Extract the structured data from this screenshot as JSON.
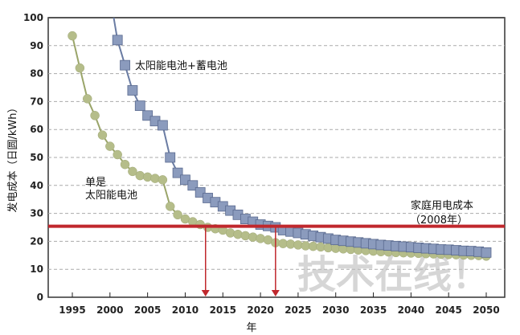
{
  "chart_data": {
    "type": "line",
    "title": "",
    "xlabel": "年",
    "ylabel": "发电成本（日圆/kWh）",
    "xlim": [
      1990,
      2052
    ],
    "ylim": [
      0,
      100
    ],
    "xticks": [
      1995,
      2000,
      2005,
      2010,
      2015,
      2020,
      2025,
      2030,
      2035,
      2040,
      2045,
      2050
    ],
    "yticks": [
      0,
      10,
      20,
      30,
      40,
      50,
      60,
      70,
      80,
      90,
      100
    ],
    "grid": "horizontal dashed",
    "series": [
      {
        "name": "单是太阳能电池",
        "label_line1": "单是",
        "label_line2": "太阳能电池",
        "marker": "circle",
        "color": "#b5bd8a",
        "line_color": "#9aa56a",
        "x": [
          1995,
          1996,
          1997,
          1998,
          1999,
          2000,
          2001,
          2002,
          2003,
          2004,
          2005,
          2006,
          2007,
          2008,
          2009,
          2010,
          2011,
          2012,
          2013,
          2014,
          2015,
          2016,
          2017,
          2018,
          2019,
          2020,
          2021,
          2022,
          2023,
          2024,
          2025,
          2026,
          2027,
          2028,
          2029,
          2030,
          2031,
          2032,
          2033,
          2034,
          2035,
          2036,
          2037,
          2038,
          2039,
          2040,
          2041,
          2042,
          2043,
          2044,
          2045,
          2046,
          2047,
          2048,
          2049,
          2050
        ],
        "y": [
          93.5,
          82,
          71,
          65,
          58,
          54,
          51,
          47.5,
          45,
          43.5,
          43,
          42.5,
          42,
          32.5,
          29.5,
          28,
          27,
          26,
          25,
          24.5,
          24,
          23,
          22.5,
          22,
          21.5,
          21,
          20.5,
          19.5,
          19.2,
          19,
          18.7,
          18.4,
          18.2,
          18,
          17.7,
          17.5,
          17.3,
          17.1,
          16.9,
          16.7,
          16.5,
          16.3,
          16.2,
          16,
          15.9,
          15.8,
          15.7,
          15.6,
          15.5,
          15.4,
          15.3,
          15.2,
          15.1,
          15,
          14.9,
          14.7
        ]
      },
      {
        "name": "太阳能电池+蓄电池",
        "marker": "square",
        "color": "#8b9bbd",
        "line_color": "#6a7ca3",
        "x": [
          2001,
          2002,
          2003,
          2004,
          2005,
          2006,
          2007,
          2008,
          2009,
          2010,
          2011,
          2012,
          2013,
          2014,
          2015,
          2016,
          2017,
          2018,
          2019,
          2020,
          2021,
          2022,
          2023,
          2024,
          2025,
          2026,
          2027,
          2028,
          2029,
          2030,
          2031,
          2032,
          2033,
          2034,
          2035,
          2036,
          2037,
          2038,
          2039,
          2040,
          2041,
          2042,
          2043,
          2044,
          2045,
          2046,
          2047,
          2048,
          2049,
          2050
        ],
        "y": [
          92,
          83,
          74,
          68.5,
          65,
          63,
          61.5,
          50,
          44.5,
          42,
          40,
          37.5,
          35.5,
          34,
          32.5,
          31,
          29.5,
          28,
          27,
          26,
          25.5,
          25,
          24,
          23.5,
          23,
          22.5,
          22,
          21.5,
          21,
          20.5,
          20.2,
          19.9,
          19.6,
          19.3,
          19,
          18.7,
          18.5,
          18.3,
          18.1,
          17.9,
          17.7,
          17.5,
          17.3,
          17.1,
          17,
          16.8,
          16.6,
          16.5,
          16.3,
          16
        ]
      }
    ],
    "reference_line": {
      "value": 25.4,
      "label_line1": "家庭用电成本",
      "label_line2": "（2008年）",
      "color": "#c0282d"
    },
    "arrows": [
      {
        "x": 2012.7
      },
      {
        "x": 2022
      }
    ],
    "watermark": "技术在线！"
  }
}
